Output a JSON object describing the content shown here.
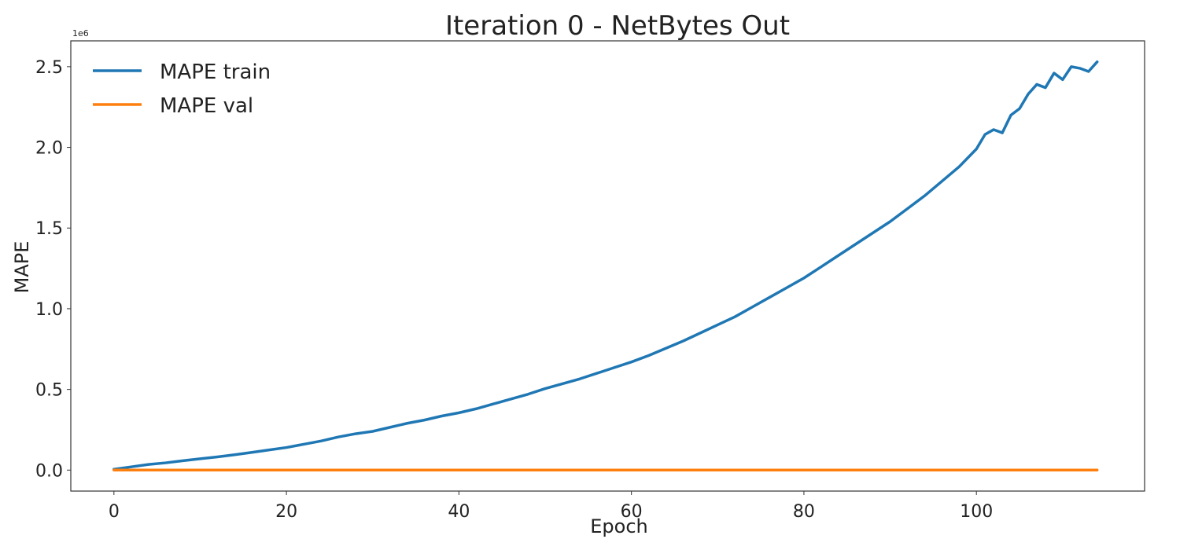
{
  "chart_data": {
    "type": "line",
    "title": "Iteration 0 - NetBytes Out",
    "xlabel": "Epoch",
    "ylabel": "MAPE",
    "y_offset_label": "1e6",
    "xlim": [
      -5,
      119.5
    ],
    "ylim": [
      -130000,
      2660000
    ],
    "x_ticks": [
      0,
      20,
      40,
      60,
      80,
      100
    ],
    "x_tick_labels": [
      "0",
      "20",
      "40",
      "60",
      "80",
      "100"
    ],
    "y_ticks": [
      0,
      500000,
      1000000,
      1500000,
      2000000,
      2500000
    ],
    "y_tick_labels": [
      "0.0",
      "0.5",
      "1.0",
      "1.5",
      "2.0",
      "2.5"
    ],
    "grid": false,
    "legend_position": "top-left",
    "colors": {
      "train": "#1f77b4",
      "val": "#ff7f0e"
    },
    "series": [
      {
        "name": "MAPE train",
        "x": [
          0,
          2,
          4,
          6,
          8,
          10,
          12,
          14,
          16,
          18,
          20,
          22,
          24,
          26,
          28,
          30,
          32,
          34,
          36,
          38,
          40,
          42,
          44,
          46,
          48,
          50,
          52,
          54,
          56,
          58,
          60,
          62,
          64,
          66,
          68,
          70,
          72,
          74,
          76,
          78,
          80,
          82,
          84,
          86,
          88,
          90,
          92,
          94,
          96,
          98,
          100,
          101,
          102,
          103,
          104,
          105,
          106,
          107,
          108,
          109,
          110,
          111,
          112,
          113,
          114
        ],
        "values": [
          5000,
          20000,
          35000,
          45000,
          58000,
          70000,
          82000,
          95000,
          110000,
          125000,
          140000,
          160000,
          180000,
          205000,
          225000,
          240000,
          265000,
          290000,
          310000,
          335000,
          355000,
          380000,
          410000,
          440000,
          470000,
          505000,
          535000,
          565000,
          600000,
          635000,
          670000,
          710000,
          755000,
          800000,
          850000,
          900000,
          950000,
          1010000,
          1070000,
          1130000,
          1190000,
          1260000,
          1330000,
          1400000,
          1470000,
          1540000,
          1620000,
          1700000,
          1790000,
          1880000,
          1990000,
          2080000,
          2110000,
          2090000,
          2200000,
          2240000,
          2330000,
          2390000,
          2370000,
          2460000,
          2420000,
          2500000,
          2490000,
          2470000,
          2530000
        ]
      },
      {
        "name": "MAPE val",
        "x": [
          0,
          114
        ],
        "values": [
          0,
          0
        ]
      }
    ]
  }
}
